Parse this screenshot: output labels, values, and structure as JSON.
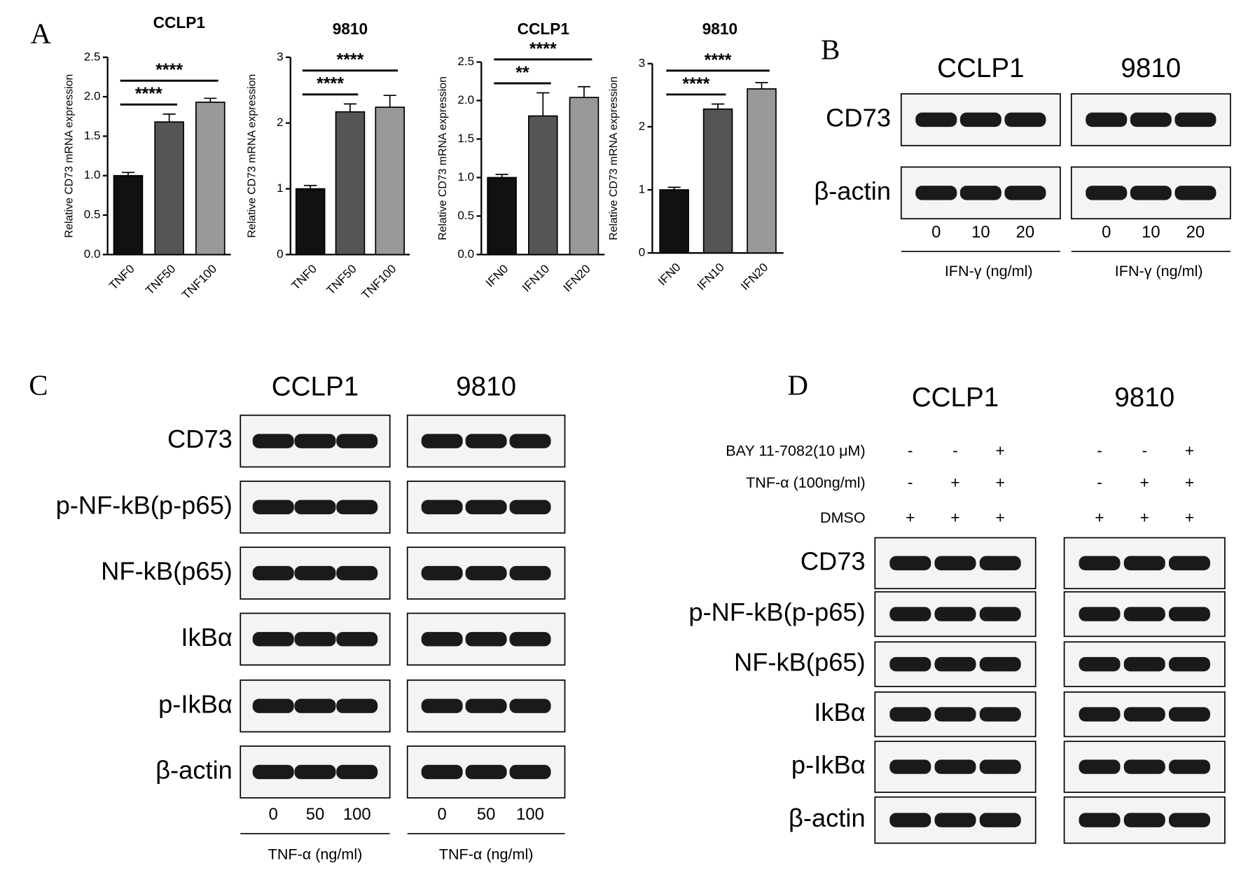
{
  "chart_data": [
    {
      "type": "bar",
      "title": "CCLP1",
      "ylabel": "Relative CD73 mRNA expression",
      "categories": [
        "TNF0",
        "TNF50",
        "TNF100"
      ],
      "values": [
        1.0,
        1.68,
        1.93
      ],
      "error": [
        0.04,
        0.1,
        0.05
      ],
      "colors": [
        "#111111",
        "#555555",
        "#999999"
      ],
      "ylim": [
        0,
        2.5
      ],
      "yticks": [
        {
          "value": 0,
          "label": "0.0"
        },
        {
          "value": 0.5,
          "label": "0.5"
        },
        {
          "value": 1,
          "label": "1.0"
        },
        {
          "value": 1.5,
          "label": "1.5"
        },
        {
          "value": 2,
          "label": "2.0"
        },
        {
          "value": 2.5,
          "label": "2.5"
        }
      ],
      "annotations": [
        "****",
        "****"
      ]
    },
    {
      "type": "bar",
      "title": "9810",
      "ylabel": "Relative CD73 mRNA expression",
      "categories": [
        "TNF0",
        "TNF50",
        "TNF100"
      ],
      "values": [
        1.0,
        2.17,
        2.24
      ],
      "error": [
        0.05,
        0.12,
        0.18
      ],
      "colors": [
        "#111111",
        "#555555",
        "#999999"
      ],
      "ylim": [
        0,
        3
      ],
      "yticks": [
        0,
        1,
        2,
        3
      ],
      "annotations": [
        "****",
        "****"
      ]
    },
    {
      "type": "bar",
      "title": "CCLP1",
      "ylabel": "Relative CD73 mRNA expression",
      "categories": [
        "IFN0",
        "IFN10",
        "IFN20"
      ],
      "values": [
        1.0,
        1.8,
        2.04
      ],
      "error": [
        0.04,
        0.3,
        0.14
      ],
      "colors": [
        "#111111",
        "#555555",
        "#999999"
      ],
      "ylim": [
        0,
        2.5
      ],
      "yticks": [
        {
          "value": 0,
          "label": "0.0"
        },
        {
          "value": 0.5,
          "label": "0.5"
        },
        {
          "value": 1,
          "label": "1.0"
        },
        {
          "value": 1.5,
          "label": "1.5"
        },
        {
          "value": 2,
          "label": "2.0"
        },
        {
          "value": 2.5,
          "label": "2.5"
        }
      ],
      "annotations": [
        "**",
        "****"
      ]
    },
    {
      "type": "bar",
      "title": "9810",
      "ylabel": "Relative CD73 mRNA expression",
      "categories": [
        "IFN0",
        "IFN10",
        "IFN20"
      ],
      "values": [
        1.0,
        2.28,
        2.6
      ],
      "error": [
        0.04,
        0.08,
        0.1
      ],
      "colors": [
        "#111111",
        "#555555",
        "#999999"
      ],
      "ylim": [
        0,
        3
      ],
      "yticks": [
        0,
        1,
        2,
        3
      ],
      "annotations": [
        "****",
        "****"
      ]
    }
  ],
  "panel_a": {
    "label": "A"
  },
  "panel_b": {
    "label": "B",
    "cell_lines": [
      "CCLP1",
      "9810"
    ],
    "rows": [
      "CD73",
      "β-actin"
    ],
    "lanes": [
      "0",
      "10",
      "20"
    ],
    "treatment": "IFN-γ (ng/ml)"
  },
  "panel_c": {
    "label": "C",
    "cell_lines": [
      "CCLP1",
      "9810"
    ],
    "rows": [
      "CD73",
      "p-NF-kB(p-p65)",
      "NF-kB(p65)",
      "IkBα",
      "p-IkBα",
      "β-actin"
    ],
    "lanes": [
      "0",
      "50",
      "100"
    ],
    "treatment": "TNF-α (ng/ml)"
  },
  "panel_d": {
    "label": "D",
    "cell_lines": [
      "CCLP1",
      "9810"
    ],
    "conditions": [
      {
        "name": "BAY 11-7082(10 μM)",
        "signs": [
          "-",
          "-",
          "+"
        ]
      },
      {
        "name": "TNF-α (100ng/ml)",
        "signs": [
          "-",
          "+",
          "+"
        ]
      },
      {
        "name": "DMSO",
        "signs": [
          "+",
          "+",
          "+"
        ]
      }
    ],
    "rows": [
      "CD73",
      "p-NF-kB(p-p65)",
      "NF-kB(p65)",
      "IkBα",
      "p-IkBα",
      "β-actin"
    ]
  }
}
